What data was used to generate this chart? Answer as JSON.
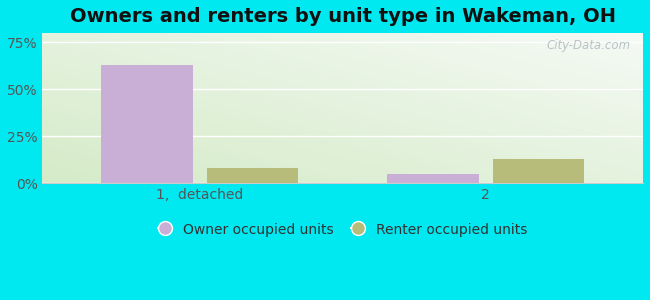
{
  "title": "Owners and renters by unit type in Wakeman, OH",
  "categories": [
    "1,  detached",
    "2"
  ],
  "owner_values": [
    63,
    5
  ],
  "renter_values": [
    8,
    13
  ],
  "owner_color": "#c9aed6",
  "renter_color": "#b8bc7a",
  "yticks": [
    0,
    25,
    50,
    75
  ],
  "ytick_labels": [
    "0%",
    "25%",
    "50%",
    "75%"
  ],
  "ylim": [
    0,
    80
  ],
  "bar_width": 0.32,
  "legend_owner": "Owner occupied units",
  "legend_renter": "Renter occupied units",
  "outer_bg": "#00e8f0",
  "watermark": "City-Data.com",
  "title_fontsize": 14,
  "axis_fontsize": 10,
  "legend_fontsize": 10,
  "bg_colors": [
    "#d5ebc8",
    "#eaf5e8",
    "#f5faf5",
    "#ffffff"
  ],
  "grid_color": "#ffffff",
  "x_positions": [
    0,
    1
  ],
  "bar_gap": 0.05
}
